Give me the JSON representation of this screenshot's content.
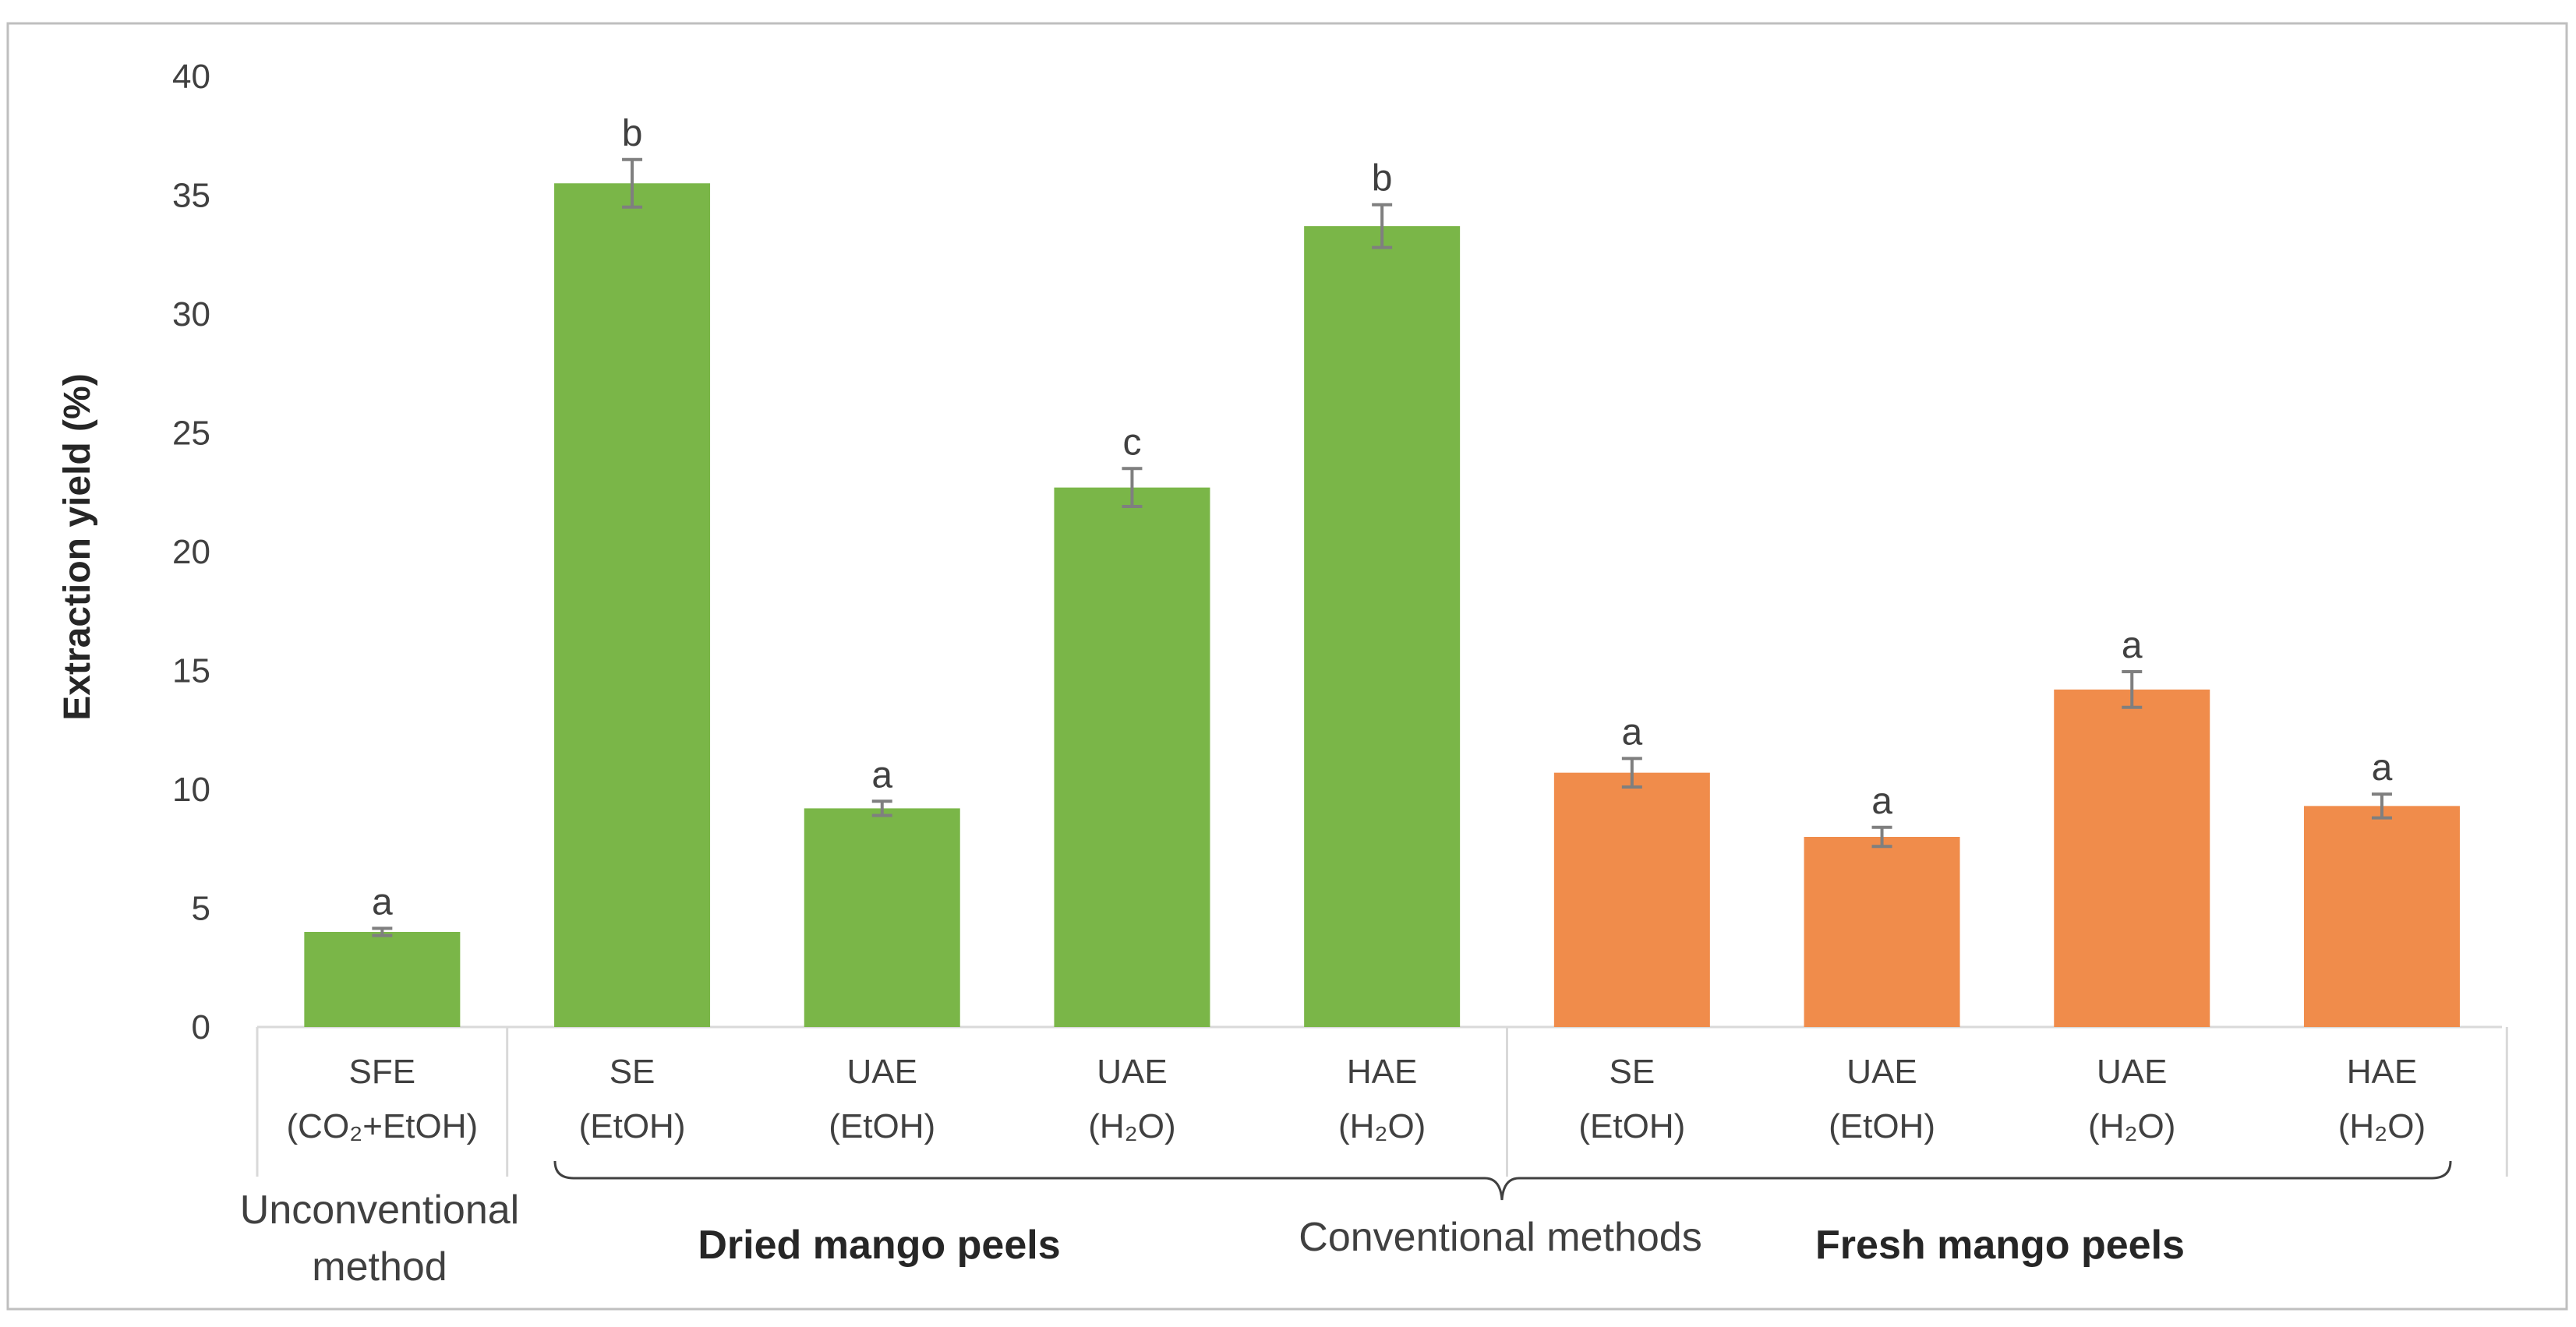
{
  "chart_data": {
    "type": "bar",
    "title": "",
    "xlabel": "",
    "ylabel": "Extraction yield (%)",
    "ylim": [
      0,
      40
    ],
    "yticks": [
      0,
      5,
      10,
      15,
      20,
      25,
      30,
      35,
      40
    ],
    "grid": false,
    "categories": [
      {
        "method": "SFE",
        "solvent": "(CO₂+EtOH)"
      },
      {
        "method": "SE",
        "solvent": "(EtOH)"
      },
      {
        "method": "UAE",
        "solvent": "(EtOH)"
      },
      {
        "method": "UAE",
        "solvent": "(H₂O)"
      },
      {
        "method": "HAE",
        "solvent": "(H₂O)"
      },
      {
        "method": "SE",
        "solvent": "(EtOH)"
      },
      {
        "method": "UAE",
        "solvent": "(EtOH)"
      },
      {
        "method": "UAE",
        "solvent": "(H₂O)"
      },
      {
        "method": "HAE",
        "solvent": "(H₂O)"
      }
    ],
    "values": [
      4.0,
      35.5,
      9.2,
      22.7,
      33.7,
      10.7,
      8.0,
      14.2,
      9.3
    ],
    "errors": [
      0.15,
      1.0,
      0.3,
      0.8,
      0.9,
      0.6,
      0.4,
      0.75,
      0.5
    ],
    "significance": [
      "a",
      "b",
      "a",
      "c",
      "b",
      "a",
      "a",
      "a",
      "a"
    ],
    "groups": [
      {
        "name": "Dried mango peels",
        "color": "#7ab648",
        "indices": [
          0,
          1,
          2,
          3,
          4
        ]
      },
      {
        "name": "Fresh mango peels",
        "color": "#f08c4b",
        "indices": [
          5,
          6,
          7,
          8
        ]
      }
    ],
    "method_labels": {
      "unconventional_line1": "Unconventional",
      "unconventional_line2": "method",
      "conventional": "Conventional methods"
    },
    "colors": {
      "dried": "#7ab648",
      "fresh": "#f08c4b",
      "error": "#7f7f7f",
      "axis": "#d9d9d9",
      "frame": "#bfbfbf"
    }
  }
}
